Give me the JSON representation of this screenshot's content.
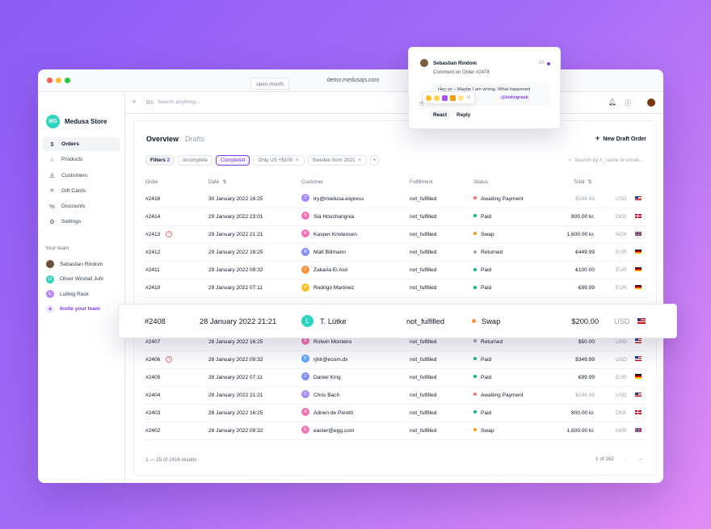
{
  "browser": {
    "tab_label": "open.msuth",
    "url": "demo.medusajs.com"
  },
  "sidebar": {
    "store_initials": "MS",
    "store_name": "Medusa Store",
    "items": [
      {
        "label": "Orders",
        "icon": "dollar-icon",
        "glyph": "$",
        "active": true
      },
      {
        "label": "Products",
        "icon": "tag-icon",
        "glyph": "⌂"
      },
      {
        "label": "Customers",
        "icon": "user-icon",
        "glyph": "♙"
      },
      {
        "label": "Gift Cards",
        "icon": "gift-icon",
        "glyph": "⌗"
      },
      {
        "label": "Discounts",
        "icon": "percent-icon",
        "glyph": "%"
      },
      {
        "label": "Settings",
        "icon": "gear-icon",
        "glyph": "⚙"
      }
    ],
    "team_title": "Your team",
    "team": [
      {
        "name": "Sebastian Rindom",
        "initial": "",
        "color": "#6b4f3a"
      },
      {
        "name": "Oliver Windall Juhl",
        "initial": "O",
        "color": "#2dd4bf"
      },
      {
        "name": "Ludvig Rask",
        "initial": "L",
        "color": "#c084fc"
      }
    ],
    "invite_label": "Invite your team"
  },
  "topbar": {
    "shortcut": "⌘K",
    "search_placeholder": "Search anything..."
  },
  "main": {
    "tabs": [
      "Overview",
      "Drafts"
    ],
    "new_draft_label": "New Draft Order",
    "filters": [
      {
        "label": "Filters",
        "count": "2",
        "type": "filters"
      },
      {
        "label": "Incomplete",
        "type": "plain"
      },
      {
        "label": "Completed",
        "type": "selected"
      },
      {
        "label": "Only US +$100",
        "type": "removable"
      },
      {
        "label": "Sweden from 2021",
        "type": "removable"
      }
    ],
    "table_search_placeholder": "Search by #_name or email...",
    "columns": {
      "order": "Order",
      "date": "Date",
      "customer": "Customer",
      "fulfillment": "Fulfillment",
      "status": "Status",
      "total": "Total"
    },
    "rows": [
      {
        "order": "#2416",
        "date": "30 January 2022 16:25",
        "initial": "T",
        "avatar": "#a78bfa",
        "customer": "try@medusa.express",
        "fulfillment": "not_fulfilled",
        "status": "Awaiting Payment",
        "status_color": "#f87171",
        "total": "$244.99",
        "total_muted": true,
        "currency": "USD",
        "flag": "us",
        "warn": false
      },
      {
        "order": "#2414",
        "date": "29 January 2022 23:01",
        "initial": "S",
        "avatar": "#f472b6",
        "customer": "Sia Houchangnia",
        "fulfillment": "not_fulfilled",
        "status": "Paid",
        "status_color": "#10b981",
        "total": "800,00 kr.",
        "total_muted": false,
        "currency": "DKK",
        "flag": "dk",
        "warn": false
      },
      {
        "order": "#2413",
        "date": "29 January 2022 21:21",
        "initial": "K",
        "avatar": "#f472b6",
        "customer": "Kasper Kristensen",
        "fulfillment": "not_fulfilled",
        "status": "Swap",
        "status_color": "#f59e0b",
        "total": "1,600.00 kr.",
        "total_muted": false,
        "currency": "NOK",
        "flag": "no",
        "warn": true
      },
      {
        "order": "#2412",
        "date": "29 January 2022 16:25",
        "initial": "M",
        "avatar": "#818cf8",
        "customer": "Matt Billmann",
        "fulfillment": "not_fulfilled",
        "status": "Returned",
        "status_color": "#9ca3af",
        "total": "€449.99",
        "total_muted": false,
        "currency": "EUR",
        "flag": "de",
        "warn": false
      },
      {
        "order": "#2411",
        "date": "29 January 2022 09:32",
        "initial": "Z",
        "avatar": "#fb923c",
        "customer": "Zakaria El Asri",
        "fulfillment": "not_fulfilled",
        "status": "Paid",
        "status_color": "#10b981",
        "total": "€100.00",
        "total_muted": false,
        "currency": "EUR",
        "flag": "de",
        "warn": false
      },
      {
        "order": "#2410",
        "date": "29 January 2022 07:11",
        "initial": "R",
        "avatar": "#fbbf24",
        "customer": "Rodrigo Martinez",
        "fulfillment": "not_fulfilled",
        "status": "Paid",
        "status_color": "#10b981",
        "total": "€99.99",
        "total_muted": false,
        "currency": "EUR",
        "flag": "de",
        "warn": false
      },
      {
        "ghost": true
      },
      {
        "ghost": true
      },
      {
        "order": "#2407",
        "date": "28 January 2022 16:25",
        "initial": "R",
        "avatar": "#f472b6",
        "customer": "Rolwin Monteiro",
        "fulfillment": "not_fulfilled",
        "status": "Returned",
        "status_color": "#9ca3af",
        "total": "$50.00",
        "total_muted": false,
        "currency": "USD",
        "flag": "us",
        "warn": false
      },
      {
        "order": "#2406",
        "date": "28 January 2022 09:32",
        "initial": "R",
        "avatar": "#60a5fa",
        "customer": "rjhlr@ecom.dx",
        "fulfillment": "not_fulfilled",
        "status": "Paid",
        "status_color": "#10b981",
        "total": "$349.99",
        "total_muted": false,
        "currency": "USD",
        "flag": "us",
        "warn": true
      },
      {
        "order": "#2405",
        "date": "28 January 2022 07:11",
        "initial": "D",
        "avatar": "#818cf8",
        "customer": "Daniel King",
        "fulfillment": "not_fulfilled",
        "status": "Paid",
        "status_color": "#10b981",
        "total": "€99.99",
        "total_muted": false,
        "currency": "EUR",
        "flag": "de",
        "warn": false
      },
      {
        "order": "#2404",
        "date": "28 January 2022 21:21",
        "initial": "C",
        "avatar": "#a78bfa",
        "customer": "Chris Bach",
        "fulfillment": "not_fulfilled",
        "status": "Awaiting Payment",
        "status_color": "#f87171",
        "total": "$244.99",
        "total_muted": true,
        "currency": "USD",
        "flag": "us",
        "warn": false
      },
      {
        "order": "#2403",
        "date": "28 January 2022 16:25",
        "initial": "A",
        "avatar": "#f472b6",
        "customer": "Adrien de Peretti",
        "fulfillment": "not_fulfilled",
        "status": "Paid",
        "status_color": "#10b981",
        "total": "800.00 kr.",
        "total_muted": false,
        "currency": "DKK",
        "flag": "dk",
        "warn": false
      },
      {
        "order": "#2402",
        "date": "28 January 2022 09:32",
        "initial": "E",
        "avatar": "#f472b6",
        "customer": "easter@egg.com",
        "fulfillment": "not_fulfilled",
        "status": "Swap",
        "status_color": "#f59e0b",
        "total": "1,600.00 kr.",
        "total_muted": false,
        "currency": "NOK",
        "flag": "no",
        "warn": false
      }
    ],
    "results_text": "1 — 15 of 2416 results",
    "pagination": "1 of 162"
  },
  "highlight_row": {
    "order": "#2408",
    "date": "28 January 2022 21:21",
    "initial": "L",
    "avatar": "#2dd4bf",
    "customer": "T. Lütke",
    "fulfillment": "not_fulfilled",
    "status": "Swap",
    "status_color": "#fb923c",
    "total": "$200.00",
    "currency": "USD",
    "flag": "us"
  },
  "comment": {
    "author": "Sebastian Rindom",
    "time": "1h",
    "subtitle": "Comment on Order #2478",
    "message": "Hey yo – Maybe I am wrong. What happened",
    "mention": "@ludvigrask",
    "react_label": "React",
    "reply_label": "Reply"
  }
}
